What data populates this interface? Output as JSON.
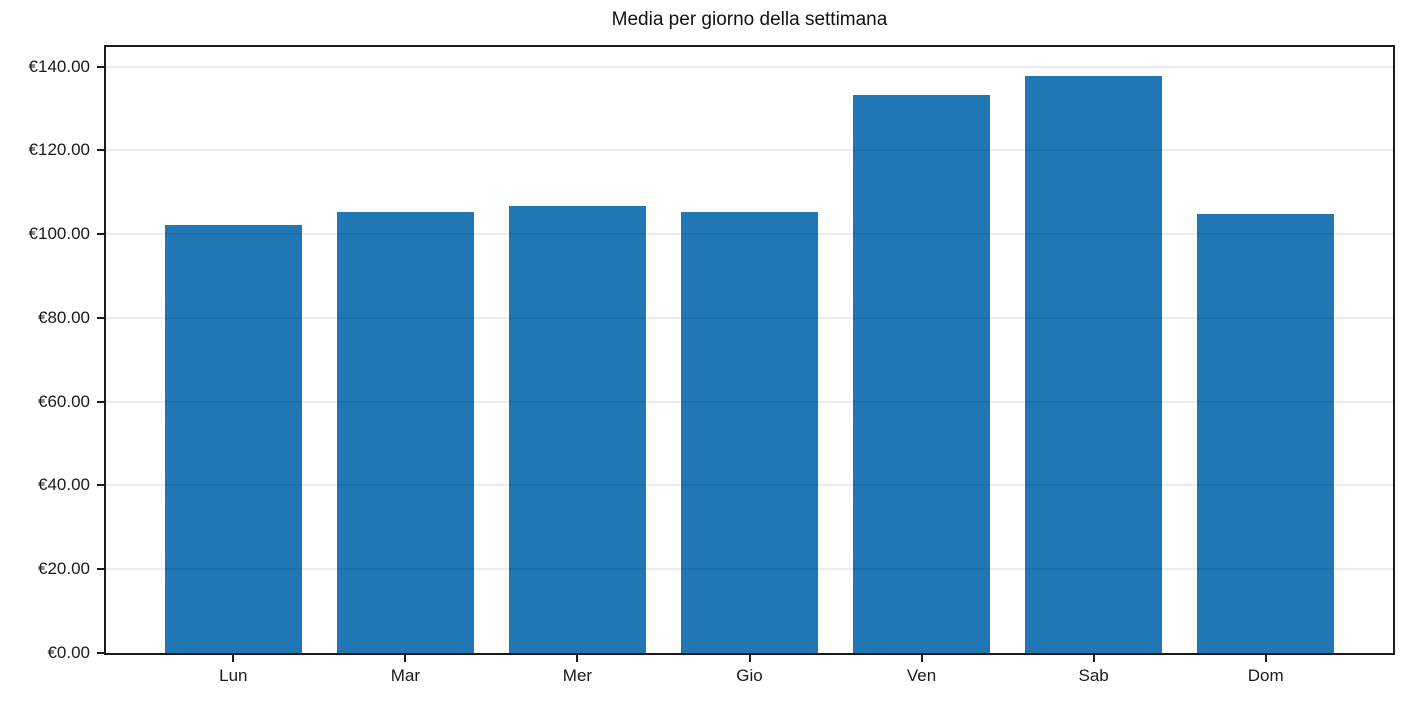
{
  "chart_data": {
    "type": "bar",
    "title": "Media per giorno della settimana",
    "categories": [
      "Lun",
      "Mar",
      "Mer",
      "Gio",
      "Ven",
      "Sab",
      "Dom"
    ],
    "values": [
      102.3,
      105.4,
      106.8,
      105.2,
      133.2,
      137.8,
      104.8
    ],
    "xlabel": "",
    "ylabel": "",
    "ylim": [
      0,
      144.7
    ],
    "yticks": [
      {
        "value": 0,
        "label": "€0.00"
      },
      {
        "value": 20,
        "label": "€20.00"
      },
      {
        "value": 40,
        "label": "€40.00"
      },
      {
        "value": 60,
        "label": "€60.00"
      },
      {
        "value": 80,
        "label": "€80.00"
      },
      {
        "value": 100,
        "label": "€100.00"
      },
      {
        "value": 120,
        "label": "€120.00"
      },
      {
        "value": 140,
        "label": "€140.00"
      }
    ],
    "grid": true,
    "legend": null,
    "colors": {
      "bar": "#2177b4",
      "grid": "#ececec",
      "spine": "#1b1b1b",
      "text": "#1a1a1a",
      "background": "#ffffff"
    }
  }
}
